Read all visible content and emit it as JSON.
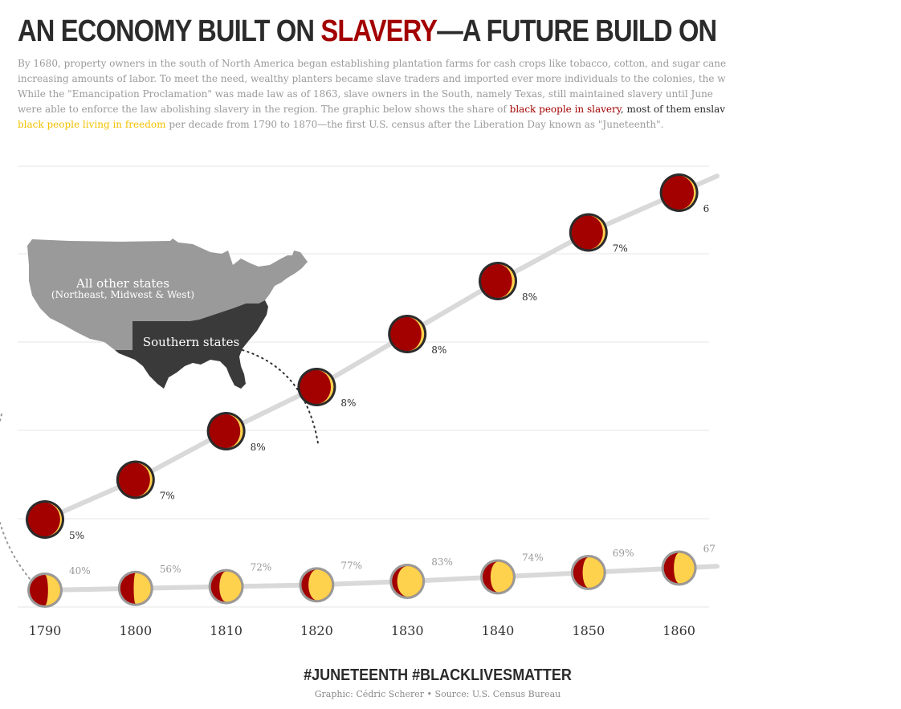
{
  "title": {
    "part1": "AN ECONOMY BUILT ON ",
    "accent": "SLAVERY",
    "part2": "—A FUTURE BUILD ON"
  },
  "intro": {
    "line1": "By 1680, property owners in the south of North America began establishing plantation farms for cash crops like tobacco, cotton, and sugar cane",
    "line2": "increasing amounts of labor. To meet the need, wealthy planters became slave traders and imported ever more individuals to the colonies, the w",
    "line3": "While the \"Emancipation Proclamation\" was made law as of 1863, slave owners in the South, namely Texas, still maintained slavery until June",
    "line4_start": "were able to enforce the law abolishing slavery in the region. The graphic below shows the share of ",
    "line4_red": "black people in slavery",
    "line4_mid": ", most of them enslav",
    "line5_gold": "black people living in freedom",
    "line5_end": " per decade from 1790 to 1870—the first U.S. census after the Liberation Day known as \"Juneteenth\"."
  },
  "map": {
    "other_states_label": "All other states",
    "other_states_sub": "(Northeast, Midwest & West)",
    "southern_states_label": "Southern states"
  },
  "chart_data": {
    "type": "line",
    "x": [
      1790,
      1800,
      1810,
      1820,
      1830,
      1840,
      1850,
      1860
    ],
    "x_tick_labels": [
      "1790",
      "1800",
      "1810",
      "1820",
      "1830",
      "1840",
      "1850",
      "1860"
    ],
    "series": [
      {
        "name": "black people in slavery",
        "region": "Southern states",
        "freedom_share_labels": [
          "5%",
          "7%",
          "8%",
          "8%",
          "8%",
          "8%",
          "7%",
          "6"
        ],
        "freedom_share": [
          5,
          7,
          8,
          8,
          8,
          8,
          7,
          6
        ],
        "level": [
          0.9,
          1.35,
          1.9,
          2.4,
          3.0,
          3.6,
          4.15,
          4.6
        ]
      },
      {
        "name": "black people living in freedom",
        "region": "All other states",
        "freedom_share_labels": [
          "40%",
          "56%",
          "72%",
          "77%",
          "83%",
          "74%",
          "69%",
          "67"
        ],
        "freedom_share": [
          40,
          56,
          72,
          77,
          83,
          74,
          69,
          67
        ],
        "level": [
          0.1,
          0.12,
          0.14,
          0.16,
          0.2,
          0.25,
          0.3,
          0.35
        ]
      }
    ],
    "grid": true,
    "colors": {
      "slavery": "#a30000",
      "freedom": "#ffd24d",
      "line": "#d9d9d9",
      "grid": "#e6e6e6",
      "southern_map": "#3a3a3a",
      "other_map": "#9a9a9a"
    }
  },
  "footer": {
    "hashtags": "#JUNETEENTH #BLACKLIVESMATTER",
    "credit": "Graphic: Cédric Scherer • Source: U.S. Census Bureau"
  }
}
